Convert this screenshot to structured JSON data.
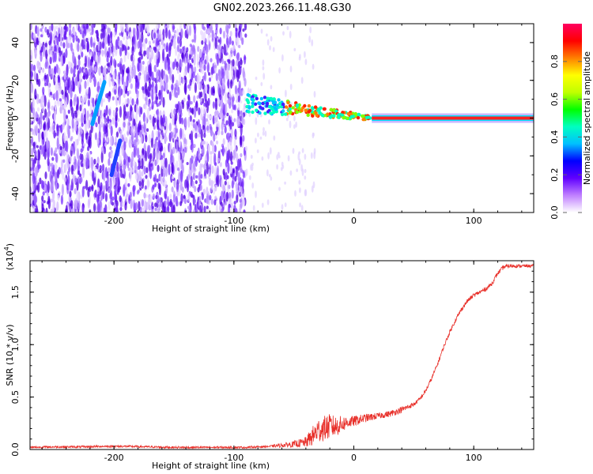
{
  "figure": {
    "title": "GN02.2023.266.11.48.G30"
  },
  "chart_data": [
    {
      "type": "heatmap",
      "xlabel": "Height of straight line (km)",
      "ylabel": "Frequency (Hz)",
      "xlim": [
        -270,
        150
      ],
      "ylim": [
        -50,
        50
      ],
      "x_ticks": [
        -200,
        -100,
        0,
        100
      ],
      "y_ticks": [
        -40,
        -20,
        0,
        20,
        40
      ],
      "tick_labels_x": [
        "-200",
        "-100",
        "0",
        "100"
      ],
      "tick_labels_y": [
        "-40",
        "-20",
        "0",
        "20",
        "40"
      ],
      "colorbar": {
        "label": "Normalized spectral amplitude",
        "range": [
          0,
          1
        ],
        "ticks": [
          0.0,
          0.2,
          0.4,
          0.6,
          0.8
        ],
        "tick_labels": [
          "0.0",
          "0.2",
          "0.4",
          "0.6",
          "0.8"
        ],
        "colormap": [
          "#ffffff",
          "#c080ff",
          "#6000ff",
          "#0000ff",
          "#00c0ff",
          "#00ffc0",
          "#00ff00",
          "#c0ff00",
          "#ffff00",
          "#ff8000",
          "#ff0000",
          "#ff0060"
        ]
      },
      "features": {
        "noise_region_x": [
          -270,
          -90
        ],
        "carrier_line": {
          "x_start": 15,
          "x_end": 150,
          "frequency": 0,
          "amplitude": 0.85
        },
        "transition_region": {
          "x_start": -90,
          "x_end": 15,
          "frequency_start": 8,
          "frequency_end": 0
        },
        "streak_1": {
          "x_start": -218,
          "x_end": -208,
          "freq_start": -3,
          "freq_end": 19
        },
        "streak_2": {
          "x_start": -202,
          "x_end": -195,
          "freq_start": -30,
          "freq_end": -12
        }
      },
      "grid": false
    },
    {
      "type": "line",
      "xlabel": "Height of straight line (km)",
      "ylabel": "SNR (10 * v/v)",
      "y_multiplier_label": "(x10",
      "y_multiplier_exp": "4",
      "y_multiplier_close": ")",
      "xlim": [
        -270,
        150
      ],
      "ylim": [
        0,
        1.8
      ],
      "x_ticks": [
        -200,
        -100,
        0,
        100
      ],
      "y_ticks": [
        0.0,
        0.5,
        1.0,
        1.5
      ],
      "tick_labels_x": [
        "-200",
        "-100",
        "0",
        "100"
      ],
      "tick_labels_y": [
        "0.0",
        "0.5",
        "1.0",
        "1.5"
      ],
      "series": [
        {
          "color": "#e8302a",
          "x": [
            -270,
            -250,
            -230,
            -210,
            -190,
            -170,
            -150,
            -130,
            -110,
            -90,
            -70,
            -60,
            -50,
            -40,
            -35,
            -30,
            -25,
            -20,
            -15,
            -10,
            -5,
            0,
            10,
            20,
            30,
            40,
            50,
            55,
            60,
            65,
            70,
            75,
            80,
            85,
            90,
            95,
            100,
            105,
            110,
            115,
            120,
            125,
            130,
            140,
            150
          ],
          "values": [
            0.02,
            0.025,
            0.025,
            0.03,
            0.03,
            0.025,
            0.02,
            0.02,
            0.02,
            0.02,
            0.03,
            0.04,
            0.05,
            0.07,
            0.12,
            0.18,
            0.2,
            0.22,
            0.22,
            0.24,
            0.26,
            0.27,
            0.3,
            0.32,
            0.34,
            0.38,
            0.43,
            0.48,
            0.56,
            0.68,
            0.82,
            0.98,
            1.12,
            1.24,
            1.34,
            1.42,
            1.47,
            1.5,
            1.53,
            1.58,
            1.68,
            1.74,
            1.75,
            1.75,
            1.75
          ],
          "noise": [
            0.01,
            0.01,
            0.01,
            0.01,
            0.01,
            0.01,
            0.01,
            0.01,
            0.01,
            0.01,
            0.01,
            0.02,
            0.03,
            0.05,
            0.09,
            0.12,
            0.12,
            0.12,
            0.1,
            0.08,
            0.06,
            0.05,
            0.04,
            0.03,
            0.03,
            0.03,
            0.02,
            0.02,
            0.02,
            0.02,
            0.02,
            0.02,
            0.02,
            0.02,
            0.02,
            0.02,
            0.02,
            0.02,
            0.02,
            0.02,
            0.02,
            0.02,
            0.02,
            0.015,
            0.015
          ]
        }
      ],
      "grid": false
    }
  ]
}
